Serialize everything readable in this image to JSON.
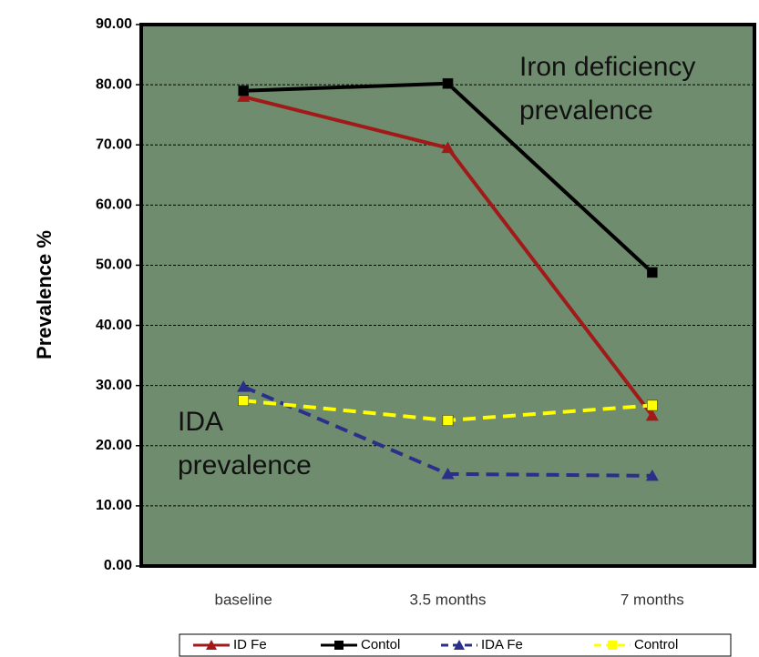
{
  "chart_data": {
    "type": "line",
    "y_label": "Prevalence %",
    "categories": [
      "baseline",
      "3.5 months",
      "7 months"
    ],
    "series": [
      {
        "name": "ID Fe",
        "color": "#a01a1a",
        "marker": "triangle",
        "dashed": false,
        "values": [
          78,
          69.5,
          25
        ]
      },
      {
        "name": "Contol",
        "color": "#000000",
        "marker": "square",
        "dashed": false,
        "values": [
          79,
          80.2,
          48.8
        ]
      },
      {
        "name": "IDA Fe",
        "color": "#2b2f8a",
        "marker": "triangle",
        "dashed": true,
        "values": [
          29.8,
          15.3,
          15
        ]
      },
      {
        "name": "Control",
        "color": "#ffff00",
        "marker": "square",
        "dashed": true,
        "values": [
          27.5,
          24.2,
          26.7
        ]
      }
    ],
    "annotations": [
      [
        "Iron deficiency",
        "prevalence"
      ],
      [
        "IDA",
        "prevalence"
      ]
    ],
    "ylim": [
      0,
      90
    ],
    "yticks": [
      {
        "value": 0,
        "label": "0.00"
      },
      {
        "value": 10,
        "label": "10.00"
      },
      {
        "value": 20,
        "label": "20.00"
      },
      {
        "value": 30,
        "label": "30.00"
      },
      {
        "value": 40,
        "label": "40.00"
      },
      {
        "value": 50,
        "label": "50.00"
      },
      {
        "value": 60,
        "label": "60.00"
      },
      {
        "value": 70,
        "label": "70.00"
      },
      {
        "value": 80,
        "label": "80.00"
      },
      {
        "value": 90,
        "label": "90.00"
      }
    ],
    "grid": true,
    "plot_background": "#6f8c6e",
    "legend": "bottom"
  }
}
